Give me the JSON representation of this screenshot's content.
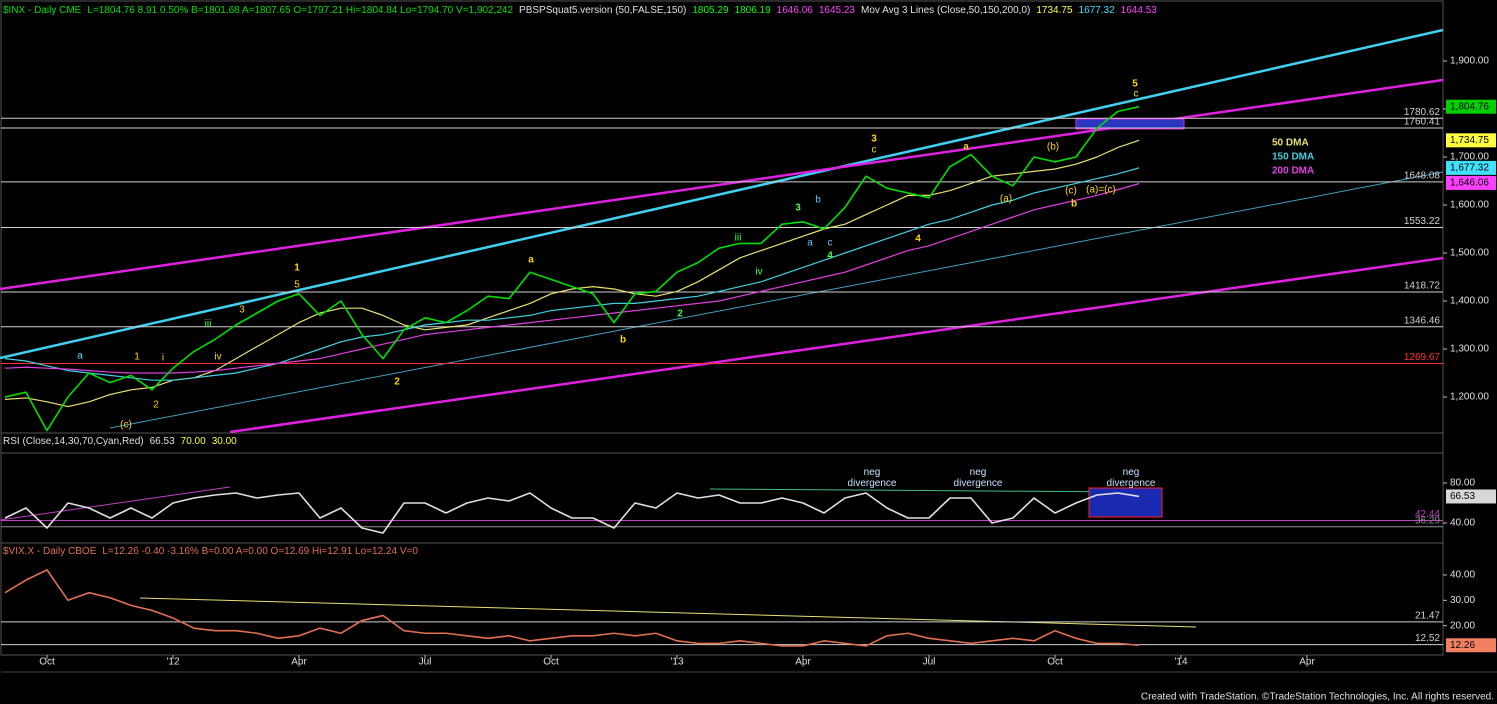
{
  "chart_data": [
    {
      "type": "line",
      "title": "$INX - Daily  CME",
      "color": "#00e000",
      "quote": "L=1804.76  8.91  0.50%  B=1801.68  A=1807.65  O=1797.21  Hi=1804.84  Lo=1794.70  V=1,902,242",
      "indicators": [
        {
          "text": "PBSPSquat5.version (50,FALSE,150)",
          "color": "#e0e0e0"
        },
        {
          "value": 1805.29,
          "color": "#00ff00"
        },
        {
          "value": 1806.19,
          "color": "#00ff00"
        },
        {
          "value": 1646.06,
          "color": "#ff40ff"
        },
        {
          "value": 1645.23,
          "color": "#ff40ff"
        },
        {
          "text": "Mov Avg 3 Lines (Close,50,150,200,0)",
          "color": "#e0e0e0"
        },
        {
          "value": 1734.75,
          "color": "#ffff40"
        },
        {
          "value": 1677.32,
          "color": "#40e0ff"
        },
        {
          "value": 1644.53,
          "color": "#ff40ff"
        }
      ],
      "categories": [
        null,
        null,
        "Oct",
        null,
        null,
        null,
        null,
        null,
        "'12",
        null,
        null,
        null,
        null,
        null,
        "Apr",
        null,
        null,
        null,
        null,
        null,
        "Jul",
        null,
        null,
        null,
        null,
        null,
        "Oct",
        null,
        null,
        null,
        null,
        null,
        "'13",
        null,
        null,
        null,
        null,
        null,
        "Apr",
        null,
        null,
        null,
        null,
        null,
        "Jul",
        null,
        null,
        null,
        null,
        null,
        "Oct",
        null,
        null,
        null,
        null,
        null,
        "'14",
        null,
        null,
        null,
        null,
        null,
        "Apr",
        null,
        null,
        null,
        null,
        null,
        null
      ],
      "values": [
        1200,
        1210,
        1130,
        1200,
        1250,
        1230,
        1245,
        1215,
        1260,
        1295,
        1320,
        1350,
        1375,
        1400,
        1415,
        1370,
        1400,
        1330,
        1280,
        1340,
        1365,
        1355,
        1380,
        1410,
        1405,
        1460,
        1445,
        1430,
        1415,
        1355,
        1415,
        1420,
        1460,
        1480,
        1510,
        1520,
        1520,
        1560,
        1565,
        1550,
        1595,
        1660,
        1635,
        1625,
        1615,
        1680,
        1705,
        1660,
        1640,
        1700,
        1690,
        1700,
        1760,
        1795,
        1804.76,
        null,
        null,
        null,
        null,
        null,
        null,
        null,
        null,
        null,
        null,
        null,
        null,
        null,
        null
      ],
      "series": [
        {
          "name": "50 DMA",
          "color": "#e8e070",
          "values": [
            1195,
            1198,
            1190,
            1180,
            1190,
            1205,
            1215,
            1220,
            1235,
            1240,
            1255,
            1280,
            1305,
            1330,
            1355,
            1375,
            1385,
            1385,
            1370,
            1350,
            1340,
            1345,
            1350,
            1365,
            1380,
            1395,
            1415,
            1425,
            1430,
            1425,
            1415,
            1410,
            1420,
            1440,
            1465,
            1490,
            1505,
            1520,
            1535,
            1550,
            1560,
            1580,
            1600,
            1620,
            1620,
            1630,
            1645,
            1660,
            1665,
            1670,
            1675,
            1685,
            1700,
            1720,
            1734.75,
            null,
            null,
            null,
            null,
            null,
            null,
            null,
            null,
            null,
            null,
            null,
            null,
            null,
            null
          ]
        },
        {
          "name": "150 DMA",
          "color": "#40d0e0",
          "values": [
            1280,
            1275,
            1265,
            1255,
            1250,
            1245,
            1240,
            1235,
            1235,
            1240,
            1245,
            1250,
            1260,
            1270,
            1285,
            1300,
            1315,
            1325,
            1330,
            1340,
            1350,
            1355,
            1360,
            1360,
            1365,
            1370,
            1380,
            1385,
            1390,
            1395,
            1395,
            1400,
            1405,
            1410,
            1420,
            1430,
            1440,
            1455,
            1470,
            1485,
            1500,
            1515,
            1530,
            1545,
            1560,
            1570,
            1585,
            1600,
            1610,
            1625,
            1635,
            1645,
            1655,
            1665,
            1677.32,
            null,
            null,
            null,
            null,
            null,
            null,
            null,
            null,
            null,
            null,
            null,
            null,
            null,
            null
          ]
        },
        {
          "name": "200 DMA",
          "color": "#e040e0",
          "values": [
            1260,
            1262,
            1260,
            1258,
            1255,
            1252,
            1250,
            1250,
            1250,
            1252,
            1255,
            1260,
            1265,
            1270,
            1275,
            1280,
            1290,
            1300,
            1310,
            1320,
            1330,
            1335,
            1340,
            1345,
            1350,
            1355,
            1360,
            1365,
            1370,
            1375,
            1380,
            1385,
            1390,
            1395,
            1400,
            1410,
            1420,
            1430,
            1440,
            1450,
            1460,
            1475,
            1490,
            1505,
            1515,
            1530,
            1545,
            1560,
            1575,
            1590,
            1600,
            1610,
            1620,
            1632,
            1644.53,
            null,
            null,
            null,
            null,
            null,
            null,
            null,
            null,
            null,
            null,
            null,
            null,
            null,
            null
          ]
        }
      ],
      "ylim": [
        1125,
        2018.75
      ],
      "yticks": [
        {
          "value": 1200,
          "label": "1,200.00"
        },
        {
          "value": 1300,
          "label": "1,300.00"
        },
        {
          "value": 1400,
          "label": "1,400.00"
        },
        {
          "value": 1500,
          "label": "1,500.00"
        },
        {
          "value": 1600,
          "label": "1,600.00"
        },
        {
          "value": 1700,
          "label": "1,700.00"
        },
        {
          "value": 1800,
          "label": "1,800.00"
        },
        {
          "value": 1900,
          "label": "1,900.00"
        }
      ],
      "levels": [
        {
          "value": 1780.62,
          "color": "#d0d0d0"
        },
        {
          "value": 1760.41,
          "color": "#d0d0d0"
        },
        {
          "value": 1648.08,
          "color": "#d0d0d0"
        },
        {
          "value": 1553.22,
          "color": "#d0d0d0"
        },
        {
          "value": 1418.72,
          "color": "#d0d0d0"
        },
        {
          "value": 1346.46,
          "color": "#d0d0d0"
        },
        {
          "value": 1269.67,
          "color": "#ff3030"
        }
      ],
      "last_values": [
        {
          "value": 1804.76,
          "label": "1,804.76",
          "color": "#00d000"
        },
        {
          "value": 1734.75,
          "label": "1,734.75",
          "color": "#ffff40"
        },
        {
          "value": 1677.32,
          "label": "1,677.32",
          "color": "#40e0ff"
        },
        {
          "value": 1646.06,
          "label": "1,646.06",
          "color": "#ff40ff"
        }
      ],
      "annotations": [
        {
          "text": "1",
          "color": "#ffd700"
        },
        {
          "text": "5",
          "color": "#ffd700"
        },
        {
          "text": "2",
          "color": "#ffd700"
        },
        {
          "text": "3",
          "color": "#ffd700"
        },
        {
          "text": "c",
          "color": "#ffd700"
        },
        {
          "text": "4",
          "color": "#ffd700"
        },
        {
          "text": "5",
          "color": "#ffd700"
        },
        {
          "text": "c",
          "color": "#ffd700"
        },
        {
          "text": "a",
          "color": "#ffd700"
        },
        {
          "text": "b",
          "color": "#ffd700"
        },
        {
          "text": "2",
          "color": "#40ff40"
        },
        {
          "text": "3",
          "color": "#40ff40"
        },
        {
          "text": "4",
          "color": "#40ff40"
        },
        {
          "text": "iii",
          "color": "#40ff40"
        },
        {
          "text": "iv",
          "color": "#40ff40"
        },
        {
          "text": "a",
          "color": "#ffd700"
        },
        {
          "text": "(b)",
          "color": "#ffd700"
        },
        {
          "text": "(a)",
          "color": "#ffd700"
        },
        {
          "text": "(c)",
          "color": "#ffd700"
        },
        {
          "text": "b",
          "color": "#ffd700"
        },
        {
          "text": "(a)=(c)",
          "color": "#ffd700"
        },
        {
          "text": "a",
          "color": "#60c0ff"
        },
        {
          "text": "b",
          "color": "#60c0ff"
        },
        {
          "text": "c",
          "color": "#60c0ff"
        },
        {
          "text": "1",
          "color": "#ffd700"
        },
        {
          "text": "i",
          "color": "#ffd700"
        },
        {
          "text": "iii",
          "color": "#40ff40"
        },
        {
          "text": "iv",
          "color": "#ffd700"
        },
        {
          "text": "3",
          "color": "#ffd700"
        },
        {
          "text": "2",
          "color": "#ffd700"
        },
        {
          "text": "(c)",
          "color": "#ffd700"
        },
        {
          "text": "a",
          "color": "#40e0ff"
        }
      ]
    },
    {
      "type": "line",
      "title": "RSI (Close,14,30,70,Cyan,Red)",
      "color": "#e0e0e0",
      "indicators": [
        {
          "value": 66.53,
          "color": "#e0e0e0"
        },
        {
          "value": 70,
          "label": "70.00",
          "color": "#ffff40"
        },
        {
          "value": 30,
          "label": "30.00",
          "color": "#ffff40"
        }
      ],
      "values": [
        45,
        55,
        35,
        60,
        55,
        45,
        55,
        45,
        60,
        65,
        68,
        70,
        65,
        68,
        70,
        45,
        55,
        35,
        30,
        60,
        60,
        50,
        60,
        65,
        62,
        70,
        55,
        45,
        45,
        35,
        60,
        55,
        70,
        65,
        68,
        60,
        60,
        65,
        60,
        50,
        65,
        70,
        55,
        45,
        45,
        65,
        65,
        40,
        45,
        65,
        50,
        60,
        68,
        70,
        66.53,
        null,
        null,
        null,
        null,
        null,
        null,
        null,
        null,
        null,
        null,
        null,
        null,
        null,
        null
      ],
      "ylim": [
        23,
        108
      ],
      "yticks": [
        {
          "value": 80,
          "label": "80.00"
        },
        {
          "value": 40,
          "label": "40.00"
        }
      ],
      "levels": [
        {
          "value": 42.44,
          "color": "#c040c0"
        },
        {
          "value": 36.29,
          "color": "#909090"
        }
      ],
      "last_values": [
        {
          "value": 66.53,
          "label": "66.53",
          "color": "#d8d8d8"
        }
      ],
      "annotations": [
        {
          "text": [
            "neg",
            "divergence"
          ],
          "color": "#c8e0ff"
        },
        {
          "text": [
            "neg",
            "divergence"
          ],
          "color": "#c8e0ff"
        },
        {
          "text": [
            "neg",
            "divergence"
          ],
          "color": "#c8e0ff"
        }
      ]
    },
    {
      "type": "line",
      "title": "$VIX.X - Daily  CBOE",
      "color": "#e07050",
      "quote": "L=12.26  -0.40  -3.16%  B=0.00  A=0.00  O=12.69  Hi=12.91  Lo=12.24  V=0",
      "values": [
        33,
        38,
        42,
        30,
        33,
        31,
        28,
        26,
        23,
        19,
        18,
        18,
        17,
        15,
        16,
        19,
        17,
        22,
        24,
        18,
        17,
        17,
        16,
        15,
        16,
        14,
        15,
        16,
        16,
        17,
        16,
        17,
        14,
        13,
        13,
        14,
        13,
        12,
        12,
        14,
        13,
        12,
        16,
        17,
        15,
        14,
        13,
        14,
        15,
        14,
        18,
        15,
        13,
        13,
        12.26,
        null,
        null,
        null,
        null,
        null,
        null,
        null,
        null,
        null,
        null,
        null,
        null,
        null,
        null
      ],
      "ylim": [
        9.6,
        45.9
      ],
      "yticks": [
        {
          "value": 40,
          "label": "40.00"
        },
        {
          "value": 30,
          "label": "30.00"
        },
        {
          "value": 20,
          "label": "20.00"
        }
      ],
      "levels": [
        {
          "value": 21.47,
          "color": "#d0d0d0"
        },
        {
          "value": 12.52,
          "color": "#d0d0d0"
        }
      ],
      "last_values": [
        {
          "value": 12.26,
          "label": "12.26",
          "color": "#f08060"
        }
      ]
    }
  ],
  "footer": "Created with TradeStation. ©TradeStation Technologies, Inc. All rights reserved."
}
